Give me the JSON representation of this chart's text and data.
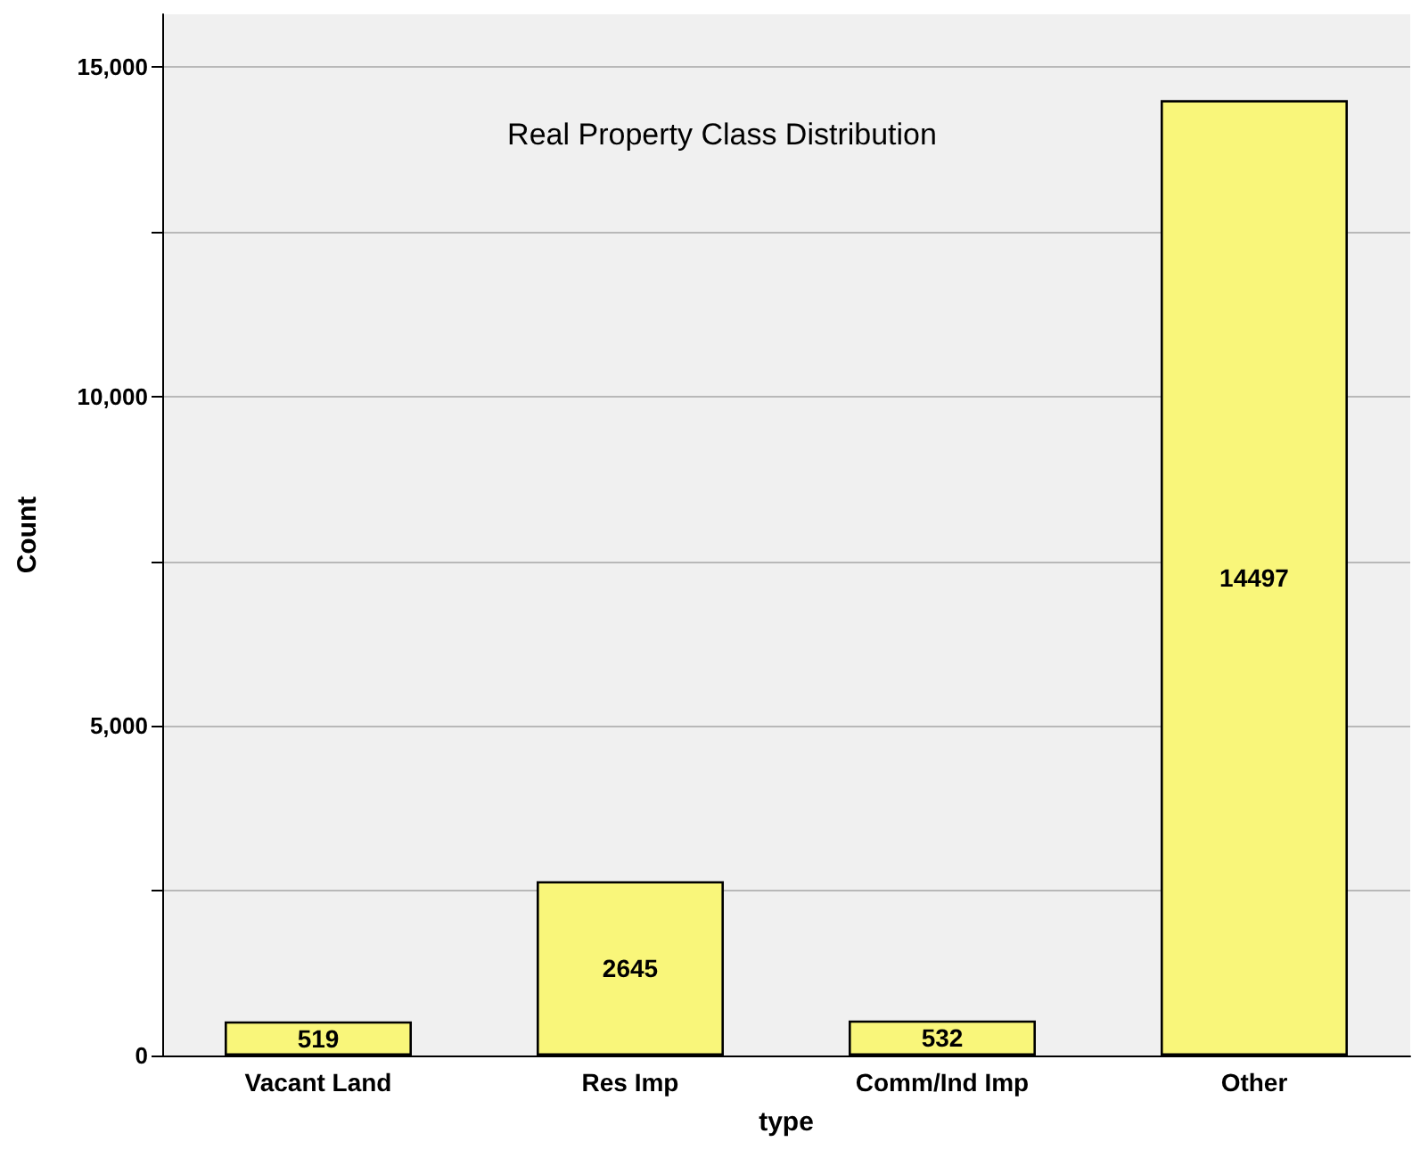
{
  "chart_data": {
    "type": "bar",
    "title": "Real Property Class Distribution",
    "xlabel": "type",
    "ylabel": "Count",
    "categories": [
      "Vacant Land",
      "Res Imp",
      "Comm/Ind Imp",
      "Other"
    ],
    "values": [
      519,
      2645,
      532,
      14497
    ],
    "color": "#f9f67a",
    "data_labels": true,
    "ylim": [
      0,
      15800
    ],
    "yticks": [
      {
        "value": 0,
        "label": "0"
      },
      {
        "value": 2500,
        "label": null
      },
      {
        "value": 5000,
        "label": "5,000"
      },
      {
        "value": 7500,
        "label": null
      },
      {
        "value": 10000,
        "label": "10,000"
      },
      {
        "value": 12500,
        "label": null
      },
      {
        "value": 15000,
        "label": "15,000"
      }
    ],
    "grid": "y"
  }
}
